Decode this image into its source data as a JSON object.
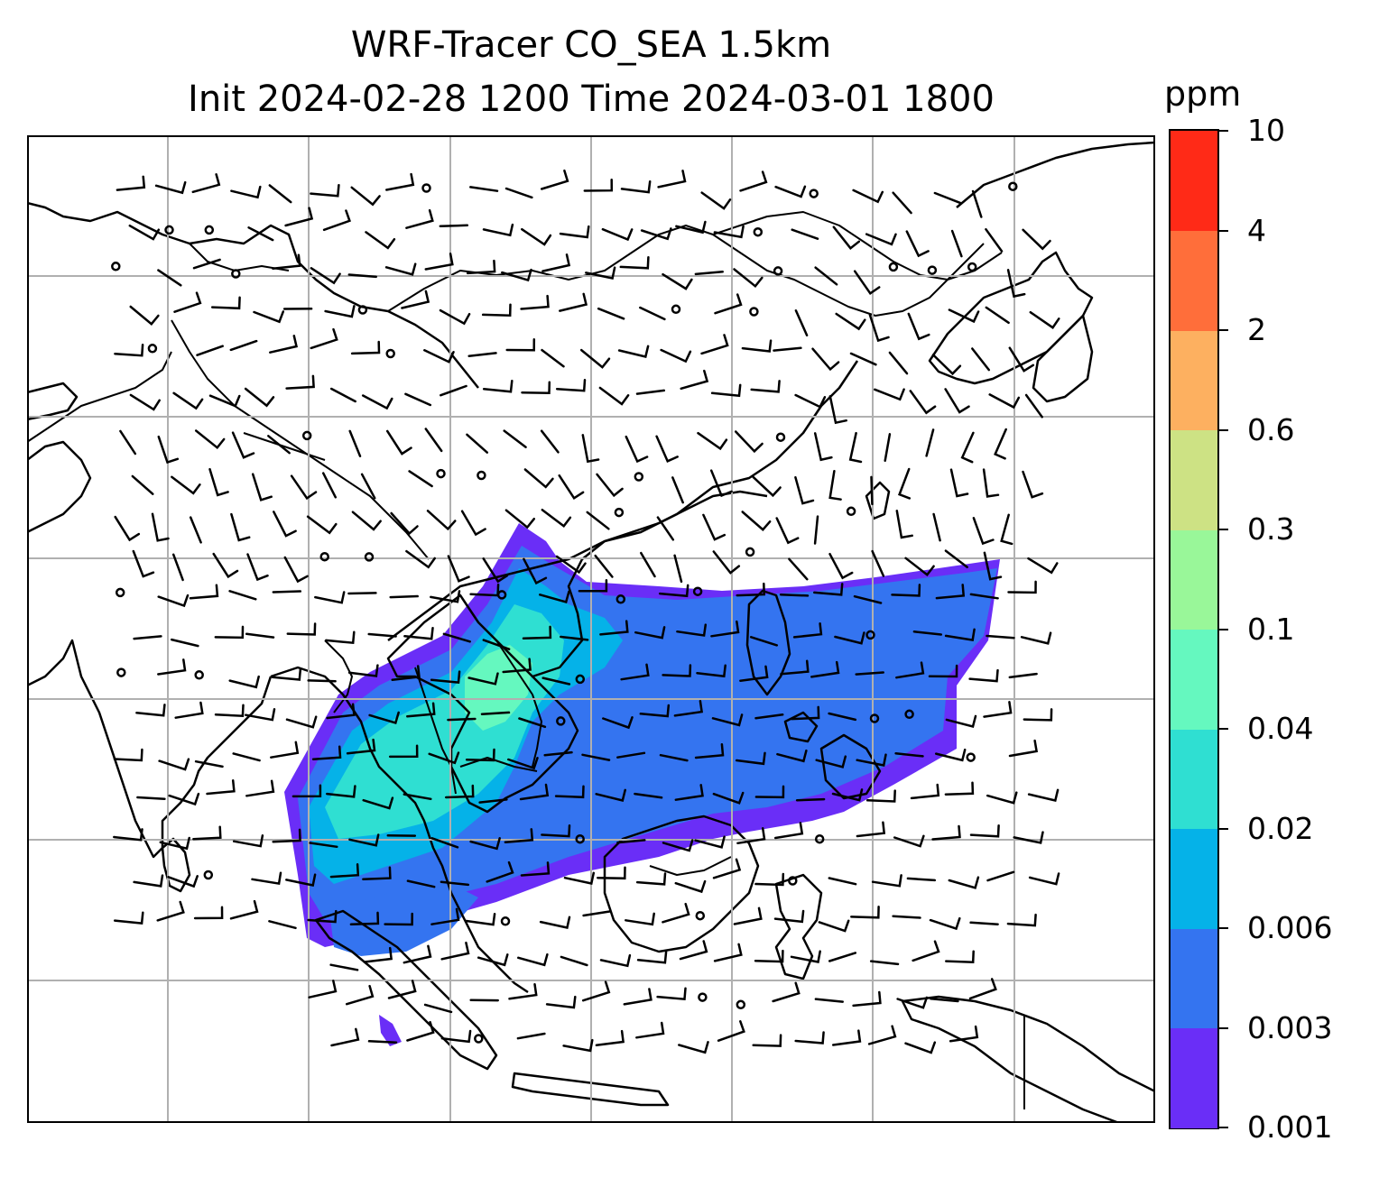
{
  "figure": {
    "title_line1": "WRF-Tracer CO_SEA 1.5km",
    "title_line2": "Init 2024-02-28 1200 Time 2024-03-01 1800"
  },
  "colorbar": {
    "units": "ppm",
    "levels": [
      "0.001",
      "0.003",
      "0.006",
      "0.02",
      "0.04",
      "0.1",
      "0.3",
      "0.6",
      "2",
      "4",
      "10"
    ],
    "colors": [
      "#6a2ef7",
      "#3474f0",
      "#05b2e8",
      "#2fdfd2",
      "#65f8bf",
      "#99f799",
      "#cde284",
      "#fdb060",
      "#ff6e3a",
      "#ff2a17"
    ]
  },
  "map": {
    "colors": {
      "coastline": "#000000",
      "gridline": "#b0b0b0",
      "wind_barb": "#000000",
      "background": "#ffffff"
    },
    "layers": [
      "coastlines",
      "country-borders",
      "gridlines",
      "wind-barbs",
      "co-tracer-concentration"
    ]
  }
}
